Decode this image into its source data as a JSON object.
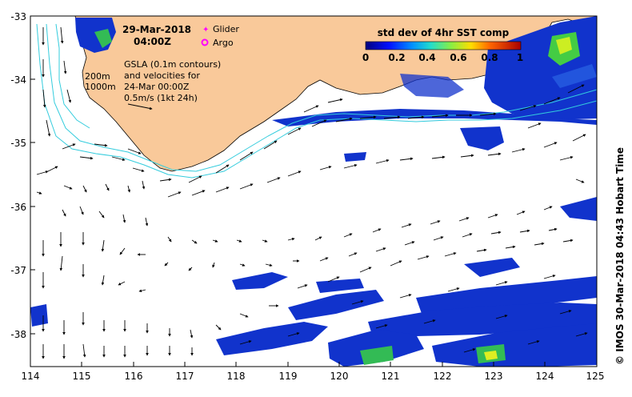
{
  "header": {
    "date": "29-Mar-2018",
    "time": "04:00Z"
  },
  "legend_markers": {
    "glider_label": "Glider",
    "argo_label": "Argo",
    "glider_color": "#ff00ff",
    "argo_color": "#ff00ff"
  },
  "contours": {
    "c200": "200m",
    "c1000": "1000m",
    "color": "#33ccdd"
  },
  "gsla_note": {
    "line1": "GSLA (0.1m contours)",
    "line2": "and velocities for",
    "line3": "24-Mar 00:00Z",
    "line4": "0.5m/s (1kt 24h)"
  },
  "colorbar": {
    "title": "std dev of 4hr SST comp",
    "ticks": [
      "0",
      "0.2",
      "0.4",
      "0.6",
      "0.8",
      "1"
    ],
    "range": [
      0,
      1
    ]
  },
  "side_credit": "© IMOS 30-Mar-2018 04:43 Hobart Time",
  "colors": {
    "land": "#f9c99a",
    "sst_low": "#1133cc",
    "sst_mid": "#33bb55",
    "sst_high": "#ddee22",
    "arrow": "#000000"
  },
  "axes": {
    "x_ticks": [
      "114",
      "115",
      "116",
      "117",
      "118",
      "119",
      "120",
      "121",
      "122",
      "123",
      "124",
      "125"
    ],
    "y_ticks": [
      "-33",
      "-34",
      "-35",
      "-36",
      "-37",
      "-38"
    ]
  }
}
